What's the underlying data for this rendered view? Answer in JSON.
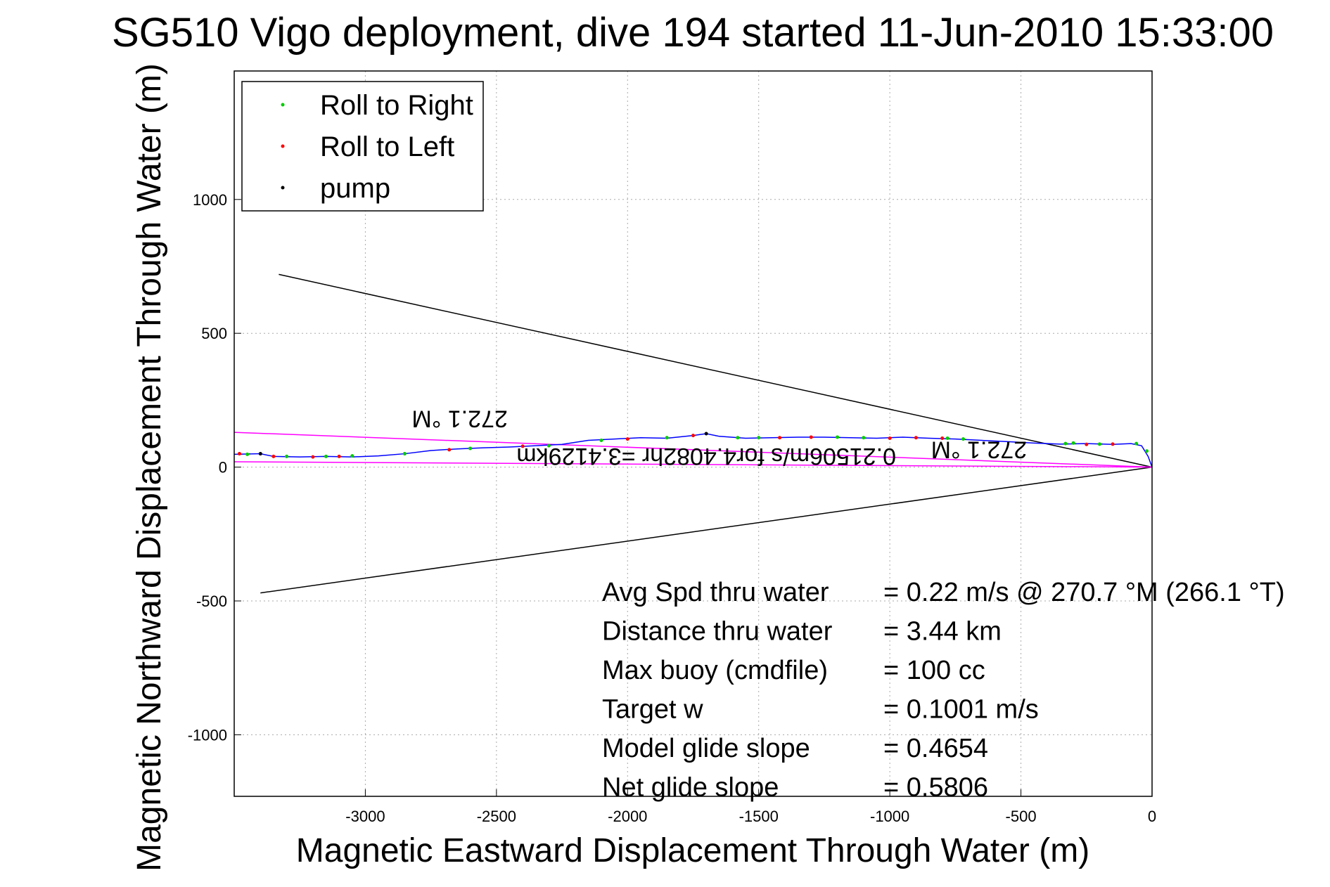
{
  "chart_data": {
    "type": "line",
    "title": "SG510 Vigo deployment, dive 194 started 11-Jun-2010 15:33:00",
    "xlabel": "Magnetic Eastward Displacement Through Water (m)",
    "ylabel": "Magnetic Northward Displacement Through Water (m)",
    "xlim": [
      -3500,
      0
    ],
    "ylim": [
      -1230,
      1480
    ],
    "xticks": [
      -3000,
      -2500,
      -2000,
      -1500,
      -1000,
      -500,
      0
    ],
    "yticks": [
      -1000,
      -500,
      0,
      500,
      1000
    ],
    "grid": true,
    "legend_position": "top-left",
    "legend": [
      {
        "name": "Roll to Right",
        "color": "#00cc00"
      },
      {
        "name": "Roll to Left",
        "color": "#ff0000"
      },
      {
        "name": "pump",
        "color": "#000000"
      }
    ],
    "series": [
      {
        "name": "track",
        "color": "#0000ff",
        "x": [
          0,
          -15,
          -40,
          -80,
          -150,
          -250,
          -350,
          -450,
          -550,
          -650,
          -750,
          -850,
          -950,
          -1050,
          -1150,
          -1250,
          -1350,
          -1450,
          -1550,
          -1650,
          -1700,
          -1750,
          -1850,
          -1950,
          -2050,
          -2150,
          -2250,
          -2350,
          -2450,
          -2550,
          -2650,
          -2750,
          -2850,
          -2950,
          -3050,
          -3150,
          -3250,
          -3350,
          -3400,
          -3500
        ],
        "y": [
          0,
          40,
          80,
          88,
          85,
          88,
          86,
          90,
          95,
          100,
          105,
          108,
          112,
          108,
          110,
          112,
          112,
          110,
          108,
          115,
          125,
          118,
          108,
          110,
          105,
          100,
          85,
          80,
          75,
          72,
          68,
          62,
          50,
          42,
          38,
          40,
          38,
          40,
          50,
          48
        ]
      }
    ],
    "marker_sets": [
      {
        "name": "Roll to Right",
        "color": "#00cc00",
        "x": [
          -20,
          -60,
          -200,
          -300,
          -330,
          -720,
          -780,
          -1100,
          -1200,
          -1500,
          -1580,
          -1850,
          -2100,
          -2300,
          -2600,
          -2850,
          -3050,
          -3150,
          -3300,
          -3450
        ],
        "y": [
          60,
          88,
          86,
          90,
          88,
          105,
          108,
          110,
          112,
          110,
          110,
          110,
          100,
          80,
          70,
          50,
          42,
          40,
          40,
          48
        ]
      },
      {
        "name": "Roll to Left",
        "color": "#ff0000",
        "x": [
          -150,
          -250,
          -800,
          -900,
          -1000,
          -1300,
          -1420,
          -1750,
          -2000,
          -2400,
          -2680,
          -3100,
          -3200,
          -3350,
          -3480
        ],
        "y": [
          86,
          85,
          108,
          110,
          108,
          112,
          110,
          118,
          105,
          78,
          65,
          40,
          38,
          40,
          50
        ]
      },
      {
        "name": "pump",
        "color": "#000000",
        "x": [
          -1700,
          -3400
        ],
        "y": [
          125,
          50
        ]
      }
    ],
    "magenta_lines": [
      {
        "x": [
          0,
          -3500
        ],
        "y": [
          0,
          130
        ]
      },
      {
        "x": [
          0,
          -3500
        ],
        "y": [
          0,
          20
        ]
      }
    ],
    "black_lines": [
      {
        "x": [
          0,
          -3330
        ],
        "y": [
          0,
          720
        ]
      },
      {
        "x": [
          0,
          -3400
        ],
        "y": [
          0,
          -470
        ]
      }
    ],
    "plot_labels": [
      {
        "text": "272.1 °M",
        "x": -2640,
        "y": 210,
        "rotate": 180
      },
      {
        "text": "272.1 °M",
        "x": -660,
        "y": 95,
        "rotate": 180
      },
      {
        "text": "0.21506m/s for4.4082hr =3.4129km",
        "x": -1700,
        "y": 70,
        "rotate": 180
      }
    ],
    "annotations": [
      {
        "label": "Avg Spd thru water",
        "value": "=  0.22 m/s @ 270.7 °M (266.1 °T)"
      },
      {
        "label": "Distance thru water",
        "value": "=  3.44 km"
      },
      {
        "label": "Max buoy (cmdfile)",
        "value": "= 100 cc"
      },
      {
        "label": "Target w",
        "value": "= 0.1001 m/s"
      },
      {
        "label": "Model glide slope",
        "value": "= 0.4654"
      },
      {
        "label": "Net glide slope",
        "value": "= 0.5806"
      }
    ]
  }
}
